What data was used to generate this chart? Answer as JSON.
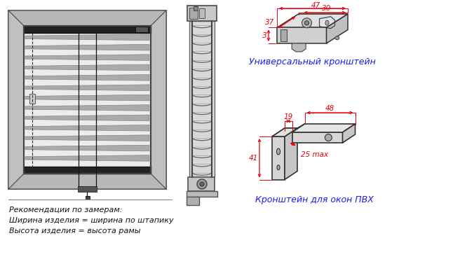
{
  "bg_color": "#ffffff",
  "text_recommendations": "Рекомендации по замерам:\nШирина изделия = ширина по штапику\nВысота изделия = высота рамы",
  "text_universal_bracket": "Универсальный кронштейн",
  "text_pvh_bracket": "Кронштейн для окон ПВХ",
  "dim_37": "37",
  "dim_30": "30",
  "dim_47": "47",
  "dim_3": "3",
  "dim_19": "19",
  "dim_48": "48",
  "dim_25": "25 max",
  "dim_41": "41",
  "text_color": "#1a1aff",
  "line_color": "#000000",
  "dim_color": "#e8000a"
}
